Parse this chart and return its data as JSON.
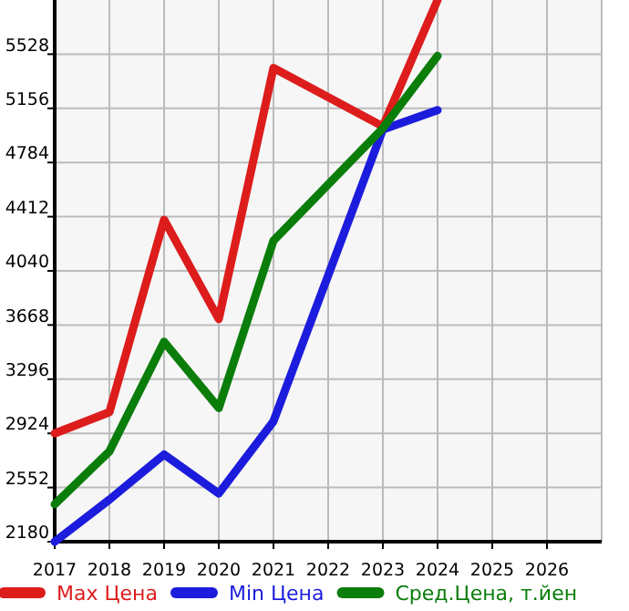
{
  "chart_data": {
    "type": "line",
    "xlim": [
      2017,
      2027
    ],
    "xticks": [
      2017,
      2018,
      2019,
      2020,
      2021,
      2022,
      2023,
      2024,
      2025,
      2026
    ],
    "ylim": [
      2180,
      5900
    ],
    "yticks": [
      2180,
      2552,
      2924,
      3296,
      3668,
      4040,
      4412,
      4784,
      5156,
      5528
    ],
    "grid": true,
    "legend": "bottom",
    "marker": "none",
    "line_style": "solid",
    "x": [
      2017,
      2018,
      2019,
      2020,
      2021,
      2023,
      2024
    ],
    "series": [
      {
        "name": "Max Цена",
        "color": "#dd1c1c",
        "values": [
          2924,
          3069,
          4391,
          3709,
          5433,
          5032,
          5900
        ]
      },
      {
        "name": "Min Цена",
        "color": "#1c1cdd",
        "values": [
          2180,
          2469,
          2779,
          2511,
          3007,
          5011,
          5144
        ]
      },
      {
        "name": "Сред.Цена, т.йен",
        "color": "#0a7d0a",
        "values": [
          2437,
          2800,
          3553,
          3098,
          4247,
          5020,
          5516
        ]
      }
    ]
  }
}
